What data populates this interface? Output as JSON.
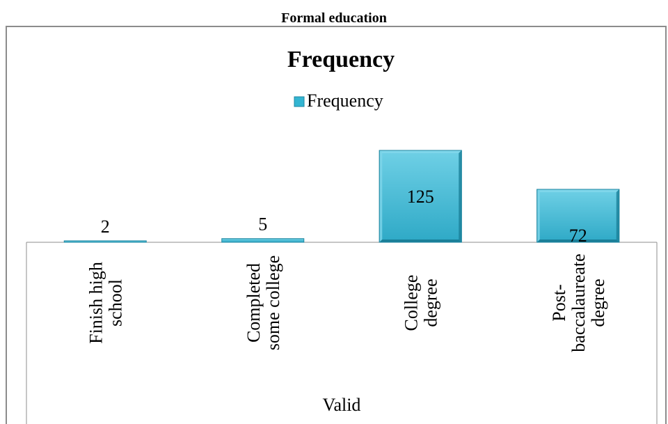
{
  "caption": "Formal education",
  "chart_data": {
    "type": "bar",
    "title": "Frequency",
    "legend": {
      "position": "top",
      "entries": [
        "Frequency"
      ]
    },
    "categories": [
      [
        "Finish high",
        "school"
      ],
      [
        "Completed",
        "some college"
      ],
      [
        "College",
        "degree"
      ],
      [
        "Post-",
        "baccalaureate",
        "degree"
      ]
    ],
    "series": [
      {
        "name": "Frequency",
        "values": [
          2,
          5,
          125,
          72
        ]
      }
    ],
    "category_group_label": "Valid",
    "ylim": [
      0,
      125
    ],
    "grid": false,
    "colors": {
      "bar_fill": "#33b5d2",
      "bar_light": "#7fd6ea",
      "bar_dark": "#1a7f99",
      "bar_stroke": "#1e86a0"
    }
  }
}
